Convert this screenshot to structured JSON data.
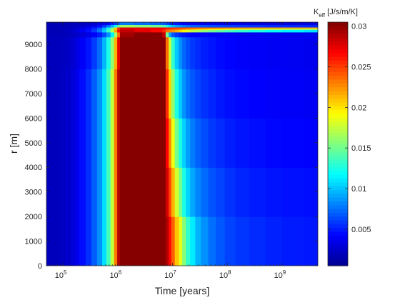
{
  "chart_data": {
    "type": "heatmap",
    "title": "",
    "xlabel": "Time [years]",
    "ylabel": "r [m]",
    "xscale": "log",
    "xlim": [
      50000,
      4500000000
    ],
    "ylim": [
      0,
      9900
    ],
    "x_ticks": [
      {
        "value": 100000,
        "base": "10",
        "exp": "5"
      },
      {
        "value": 1000000,
        "base": "10",
        "exp": "6"
      },
      {
        "value": 10000000,
        "base": "10",
        "exp": "7"
      },
      {
        "value": 100000000,
        "base": "10",
        "exp": "8"
      },
      {
        "value": 1000000000,
        "base": "10",
        "exp": "9"
      }
    ],
    "y_ticks": [
      "0",
      "1000",
      "2000",
      "3000",
      "4000",
      "5000",
      "6000",
      "7000",
      "8000",
      "9000"
    ],
    "colorbar": {
      "label_main": "K",
      "label_sub": "eff",
      "label_unit": " [J/s/m/K]",
      "range": [
        0.0005,
        0.0305
      ],
      "ticks": [
        "0.005",
        "0.01",
        "0.015",
        "0.02",
        "0.025",
        "0.03"
      ],
      "colormap": "jet"
    },
    "colormap_stops": [
      {
        "pos": 0.0,
        "color": "#00008f"
      },
      {
        "pos": 0.125,
        "color": "#0000ff"
      },
      {
        "pos": 0.375,
        "color": "#00ffff"
      },
      {
        "pos": 0.625,
        "color": "#ffff00"
      },
      {
        "pos": 0.875,
        "color": "#ff0000"
      },
      {
        "pos": 1.0,
        "color": "#800000"
      }
    ],
    "time_bins": [
      50000,
      65000,
      85000,
      110000,
      140000,
      170000,
      200000,
      260000,
      330000,
      420000,
      520000,
      620000,
      740000,
      860000,
      980000,
      1100000,
      2000000,
      4000000,
      6500000,
      7500000,
      8500000,
      9500000,
      11000000,
      13000000,
      15000000,
      17500000,
      21000000,
      26000000,
      33000000,
      45000000,
      62000000,
      90000000,
      140000000,
      250000000,
      500000000,
      1000000000,
      2500000000,
      4500000000
    ],
    "radius_levels": [
      0,
      2000,
      4000,
      6000,
      8000,
      9300,
      9500,
      9560,
      9600,
      9650,
      9700,
      9800,
      9900
    ],
    "k_eff_grid": [
      [
        0.002,
        0.002,
        0.0022,
        0.0025,
        0.003,
        0.0037,
        0.0046,
        0.0056,
        0.007,
        0.0085,
        0.0108,
        0.0138,
        0.0175,
        0.0232,
        0.029,
        0.0303,
        0.0303,
        0.0303,
        0.0303,
        0.029,
        0.0265,
        0.024,
        0.021,
        0.0185,
        0.0158,
        0.0132,
        0.0112,
        0.0095,
        0.0085,
        0.0075,
        0.0068,
        0.0062,
        0.0058,
        0.0055,
        0.0052,
        0.005,
        0.0049,
        0.0048
      ],
      [
        0.002,
        0.002,
        0.0022,
        0.0025,
        0.003,
        0.0037,
        0.0046,
        0.0056,
        0.007,
        0.0085,
        0.0108,
        0.0138,
        0.0175,
        0.0232,
        0.029,
        0.0303,
        0.0303,
        0.0303,
        0.0303,
        0.028,
        0.0248,
        0.0215,
        0.018,
        0.0152,
        0.0125,
        0.0105,
        0.0092,
        0.0082,
        0.0074,
        0.0067,
        0.0062,
        0.0057,
        0.0053,
        0.005,
        0.0048,
        0.0047,
        0.0046,
        0.0045
      ],
      [
        0.002,
        0.002,
        0.0022,
        0.0025,
        0.003,
        0.0037,
        0.0046,
        0.0056,
        0.007,
        0.0085,
        0.0108,
        0.0138,
        0.0175,
        0.0232,
        0.029,
        0.0303,
        0.0303,
        0.0303,
        0.0303,
        0.0268,
        0.0228,
        0.0188,
        0.0152,
        0.0125,
        0.0104,
        0.0089,
        0.0079,
        0.0071,
        0.0065,
        0.0059,
        0.0055,
        0.0051,
        0.0048,
        0.0046,
        0.0044,
        0.0043,
        0.0042,
        0.0042
      ],
      [
        0.002,
        0.002,
        0.0022,
        0.0025,
        0.003,
        0.0037,
        0.0046,
        0.0056,
        0.007,
        0.0085,
        0.0108,
        0.0138,
        0.0175,
        0.0232,
        0.029,
        0.0303,
        0.0303,
        0.0303,
        0.0303,
        0.0255,
        0.0205,
        0.016,
        0.0125,
        0.0102,
        0.0086,
        0.0075,
        0.0068,
        0.0062,
        0.0057,
        0.0053,
        0.0049,
        0.0046,
        0.0044,
        0.0042,
        0.0041,
        0.004,
        0.0039,
        0.0039
      ],
      [
        0.002,
        0.002,
        0.0021,
        0.0023,
        0.0027,
        0.0033,
        0.004,
        0.0048,
        0.006,
        0.0074,
        0.0096,
        0.0125,
        0.016,
        0.0215,
        0.0275,
        0.0303,
        0.0303,
        0.0303,
        0.0303,
        0.0235,
        0.0178,
        0.0132,
        0.0102,
        0.0085,
        0.0073,
        0.0065,
        0.0059,
        0.0055,
        0.0051,
        0.0048,
        0.0045,
        0.0043,
        0.0041,
        0.004,
        0.0039,
        0.0038,
        0.0037,
        0.0037
      ],
      [
        0.0019,
        0.0019,
        0.0019,
        0.002,
        0.0022,
        0.0025,
        0.0029,
        0.0034,
        0.0041,
        0.005,
        0.0064,
        0.0085,
        0.0115,
        0.0165,
        0.0235,
        0.0295,
        0.0303,
        0.0303,
        0.0285,
        0.015,
        0.009,
        0.0068,
        0.0058,
        0.0052,
        0.0048,
        0.0045,
        0.0043,
        0.0042,
        0.0041,
        0.004,
        0.0039,
        0.0038,
        0.0037,
        0.0037,
        0.0036,
        0.0036,
        0.0036,
        0.0036
      ],
      [
        0.0018,
        0.0018,
        0.0019,
        0.0021,
        0.0025,
        0.003,
        0.0038,
        0.0048,
        0.006,
        0.0078,
        0.0102,
        0.0135,
        0.017,
        0.022,
        0.0265,
        0.0285,
        0.0275,
        0.0265,
        0.0255,
        0.0235,
        0.023,
        0.0225,
        0.0215,
        0.0205,
        0.0195,
        0.0185,
        0.0175,
        0.0168,
        0.016,
        0.0152,
        0.0145,
        0.0138,
        0.0132,
        0.0126,
        0.012,
        0.0115,
        0.011,
        0.0105
      ],
      [
        0.0018,
        0.0018,
        0.0019,
        0.0021,
        0.0025,
        0.003,
        0.0038,
        0.0048,
        0.006,
        0.0078,
        0.0102,
        0.0135,
        0.017,
        0.022,
        0.0265,
        0.0285,
        0.0275,
        0.0265,
        0.0255,
        0.0235,
        0.023,
        0.0225,
        0.0215,
        0.0205,
        0.0195,
        0.0185,
        0.0175,
        0.0168,
        0.016,
        0.0152,
        0.0145,
        0.0138,
        0.0132,
        0.0126,
        0.012,
        0.0115,
        0.011,
        0.0105
      ],
      [
        0.0018,
        0.0018,
        0.0019,
        0.0021,
        0.0024,
        0.0029,
        0.0036,
        0.0045,
        0.0057,
        0.0074,
        0.0097,
        0.0128,
        0.0162,
        0.021,
        0.0255,
        0.0278,
        0.0272,
        0.0268,
        0.026,
        0.0248,
        0.0243,
        0.024,
        0.0235,
        0.0228,
        0.0222,
        0.0215,
        0.021,
        0.0205,
        0.02,
        0.0195,
        0.019,
        0.0185,
        0.018,
        0.0176,
        0.0172,
        0.0168,
        0.0165,
        0.016
      ],
      [
        0.0018,
        0.0018,
        0.0019,
        0.0021,
        0.0024,
        0.0028,
        0.0034,
        0.0042,
        0.0053,
        0.0068,
        0.009,
        0.012,
        0.0155,
        0.0205,
        0.0255,
        0.0278,
        0.0275,
        0.0272,
        0.0268,
        0.0262,
        0.026,
        0.0258,
        0.0255,
        0.0252,
        0.025,
        0.0248,
        0.0245,
        0.0242,
        0.024,
        0.0238,
        0.0235,
        0.0232,
        0.0228,
        0.0225,
        0.0222,
        0.022,
        0.0218,
        0.0215
      ],
      [
        0.0018,
        0.0018,
        0.0018,
        0.0019,
        0.002,
        0.0022,
        0.0025,
        0.003,
        0.0036,
        0.0045,
        0.0058,
        0.0075,
        0.0095,
        0.012,
        0.0148,
        0.0165,
        0.0158,
        0.015,
        0.0142,
        0.0125,
        0.0108,
        0.0098,
        0.009,
        0.0085,
        0.008,
        0.0076,
        0.0072,
        0.007,
        0.0068,
        0.0066,
        0.0064,
        0.0062,
        0.006,
        0.0058,
        0.0056,
        0.0055,
        0.0054,
        0.0053
      ],
      [
        0.0018,
        0.0018,
        0.0018,
        0.0018,
        0.0019,
        0.002,
        0.0021,
        0.0023,
        0.0026,
        0.003,
        0.0035,
        0.0042,
        0.005,
        0.006,
        0.007,
        0.0078,
        0.0074,
        0.0071,
        0.0068,
        0.0062,
        0.0056,
        0.0052,
        0.0048,
        0.0045,
        0.0043,
        0.0041,
        0.004,
        0.0039,
        0.0038,
        0.0037,
        0.0036,
        0.0035,
        0.0034,
        0.0033,
        0.0033,
        0.0032,
        0.0032,
        0.0032
      ]
    ]
  }
}
